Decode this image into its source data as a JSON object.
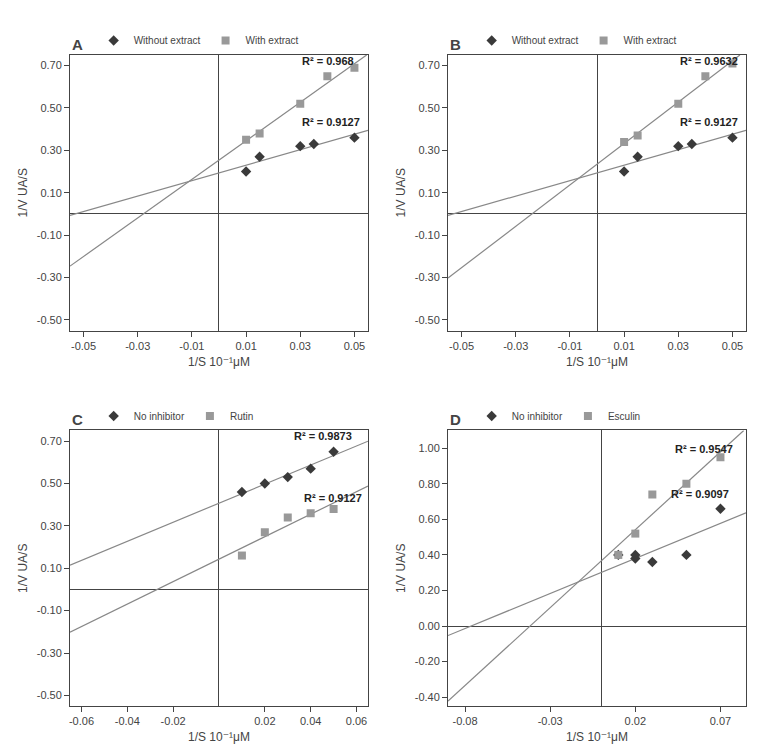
{
  "chart_data": [
    {
      "type": "scatter",
      "title": "A",
      "xlabel": "1/S 10⁻¹μM",
      "ylabel": "1/V UA/S",
      "xlim": [
        -0.055,
        0.055
      ],
      "ylim": [
        -0.55,
        0.75
      ],
      "xticks": [
        -0.05,
        -0.03,
        -0.01,
        0.01,
        0.03,
        0.05
      ],
      "yticks": [
        {
          "value": -0.5,
          "label": "-0.50"
        },
        {
          "value": -0.3,
          "label": "-0.30"
        },
        {
          "value": -0.1,
          "label": "-0.10"
        },
        {
          "value": 0.1,
          "label": "0.10"
        },
        {
          "value": 0.3,
          "label": "0.30"
        },
        {
          "value": 0.5,
          "label": "0.50"
        },
        {
          "value": 0.7,
          "label": "0.70"
        }
      ],
      "grid": false,
      "legend": "upper left",
      "series": [
        {
          "type": "line",
          "color": "#888888",
          "x": [
            -0.055,
            0.055
          ],
          "values": [
            -0.00699029,
            0.39456311
          ]
        },
        {
          "type": "line",
          "color": "#888888",
          "x": [
            -0.055,
            0.05449951
          ],
          "values": [
            -0.24625,
            0.75
          ]
        },
        {
          "name": "Without extract",
          "color": "#3a3a3a",
          "marker": "diamond",
          "x": [
            0.01,
            0.015,
            0.03,
            0.035,
            0.05
          ],
          "values": [
            0.2,
            0.27,
            0.32,
            0.33,
            0.36
          ]
        },
        {
          "name": "With extract",
          "color": "#999999",
          "marker": "square",
          "x": [
            0.01,
            0.015,
            0.03,
            0.04,
            0.05
          ],
          "values": [
            0.35,
            0.38,
            0.52,
            0.65,
            0.69
          ]
        }
      ],
      "annotations": [
        {
          "text": "R² = 0.9127",
          "x": 0.03,
          "y": 0.395
        },
        {
          "text": "R² = 0.968",
          "x": 0.03,
          "y": 0.685
        }
      ]
    },
    {
      "type": "scatter",
      "title": "B",
      "xlabel": "1/S 10⁻¹μM",
      "ylabel": "1/V UA/S",
      "xlim": [
        -0.055,
        0.055
      ],
      "ylim": [
        -0.55,
        0.75
      ],
      "xticks": [
        -0.05,
        -0.03,
        -0.01,
        0.01,
        0.03,
        0.05
      ],
      "yticks": [
        {
          "value": -0.5,
          "label": "-0.50"
        },
        {
          "value": -0.3,
          "label": "-0.30"
        },
        {
          "value": -0.1,
          "label": "-0.10"
        },
        {
          "value": 0.1,
          "label": "0.10"
        },
        {
          "value": 0.3,
          "label": "0.30"
        },
        {
          "value": 0.5,
          "label": "0.50"
        },
        {
          "value": 0.7,
          "label": "0.70"
        }
      ],
      "grid": false,
      "legend": "upper left",
      "series": [
        {
          "type": "line",
          "color": "#888888",
          "x": [
            -0.055,
            0.055
          ],
          "values": [
            -0.00699029,
            0.39456311
          ]
        },
        {
          "type": "line",
          "color": "#888888",
          "x": [
            -0.055,
            0.05275137
          ],
          "values": [
            -0.3025,
            0.75
          ]
        },
        {
          "name": "Without extract",
          "color": "#3a3a3a",
          "marker": "diamond",
          "x": [
            0.01,
            0.015,
            0.03,
            0.035,
            0.05
          ],
          "values": [
            0.2,
            0.27,
            0.32,
            0.33,
            0.36
          ]
        },
        {
          "name": "With extract",
          "color": "#999999",
          "marker": "square",
          "x": [
            0.01,
            0.015,
            0.03,
            0.04,
            0.05
          ],
          "values": [
            0.34,
            0.37,
            0.52,
            0.65,
            0.71
          ]
        }
      ],
      "annotations": [
        {
          "text": "R² = 0.9127",
          "x": 0.03,
          "y": 0.395
        },
        {
          "text": "R² = 0.9632",
          "x": 0.03,
          "y": 0.685
        }
      ]
    },
    {
      "type": "scatter",
      "title": "C",
      "xlabel": "1/S 10⁻¹μM",
      "ylabel": "1/V UA/S",
      "xlim": [
        -0.065,
        0.065
      ],
      "ylim": [
        -0.55,
        0.75
      ],
      "xticks": [
        -0.06,
        -0.04,
        -0.02,
        0.02,
        0.04,
        0.06
      ],
      "yticks": [
        {
          "value": -0.5,
          "label": "-0.50"
        },
        {
          "value": -0.3,
          "label": "-0.30"
        },
        {
          "value": -0.1,
          "label": "-0.10"
        },
        {
          "value": 0.1,
          "label": "0.10"
        },
        {
          "value": 0.3,
          "label": "0.30"
        },
        {
          "value": 0.5,
          "label": "0.50"
        },
        {
          "value": 0.7,
          "label": "0.70"
        }
      ],
      "grid": false,
      "legend": "upper left",
      "series": [
        {
          "type": "line",
          "color": "#888888",
          "x": [
            -0.065,
            0.065
          ],
          "values": [
            0.1145,
            0.6995
          ]
        },
        {
          "type": "line",
          "color": "#888888",
          "x": [
            -0.065,
            0.065
          ],
          "values": [
            -0.2015,
            0.4875
          ]
        },
        {
          "name": "No inhibitor",
          "color": "#3a3a3a",
          "marker": "diamond",
          "x": [
            0.01,
            0.02,
            0.03,
            0.04,
            0.05
          ],
          "values": [
            0.46,
            0.5,
            0.53,
            0.57,
            0.65
          ]
        },
        {
          "name": "Rutin",
          "color": "#999999",
          "marker": "square",
          "x": [
            0.01,
            0.02,
            0.03,
            0.04,
            0.05
          ],
          "values": [
            0.16,
            0.27,
            0.34,
            0.36,
            0.38
          ]
        }
      ],
      "annotations": [
        {
          "text": "R² = 0.9873",
          "x": 0.032,
          "y": 0.685
        },
        {
          "text": "R² = 0.9127",
          "x": 0.036,
          "y": 0.395
        }
      ]
    },
    {
      "type": "scatter",
      "title": "D",
      "xlabel": "1/S 10⁻¹μM",
      "ylabel": "1/V UA/S",
      "xlim": [
        -0.09,
        0.085
      ],
      "ylim": [
        -0.45,
        1.1
      ],
      "xticks": [
        -0.08,
        -0.03,
        0.02,
        0.07
      ],
      "yticks": [
        {
          "value": -0.4,
          "label": "-0.40"
        },
        {
          "value": -0.2,
          "label": "-0.20"
        },
        {
          "value": 0,
          "label": "0.00"
        },
        {
          "value": 0.2,
          "label": "0.20"
        },
        {
          "value": 0.4,
          "label": "0.40"
        },
        {
          "value": 0.6,
          "label": "0.60"
        },
        {
          "value": 0.8,
          "label": "0.80"
        },
        {
          "value": 1.0,
          "label": "1.00"
        }
      ],
      "grid": false,
      "legend": "upper left",
      "series": [
        {
          "type": "line",
          "color": "#888888",
          "x": [
            -0.09,
            0.085
          ],
          "values": [
            -0.0535088,
            0.6372807
          ]
        },
        {
          "type": "line",
          "color": "#888888",
          "x": [
            -0.09,
            0.0836775
          ],
          "values": [
            -0.4226724,
            1.1
          ]
        },
        {
          "name": "No inhibitor",
          "color": "#3a3a3a",
          "marker": "diamond",
          "x": [
            0.01,
            0.02,
            0.02,
            0.03,
            0.05,
            0.07
          ],
          "values": [
            0.4,
            0.38,
            0.4,
            0.36,
            0.4,
            0.66
          ]
        },
        {
          "name": "Esculin",
          "color": "#999999",
          "marker": "square",
          "x": [
            0.01,
            0.02,
            0.03,
            0.05,
            0.07
          ],
          "values": [
            0.4,
            0.52,
            0.74,
            0.8,
            0.95
          ]
        }
      ],
      "annotations": [
        {
          "text": "R² = 0.9097",
          "x": 0.04,
          "y": 0.7
        },
        {
          "text": "R² = 0.9547",
          "x": 0.042,
          "y": 0.95
        }
      ]
    }
  ]
}
